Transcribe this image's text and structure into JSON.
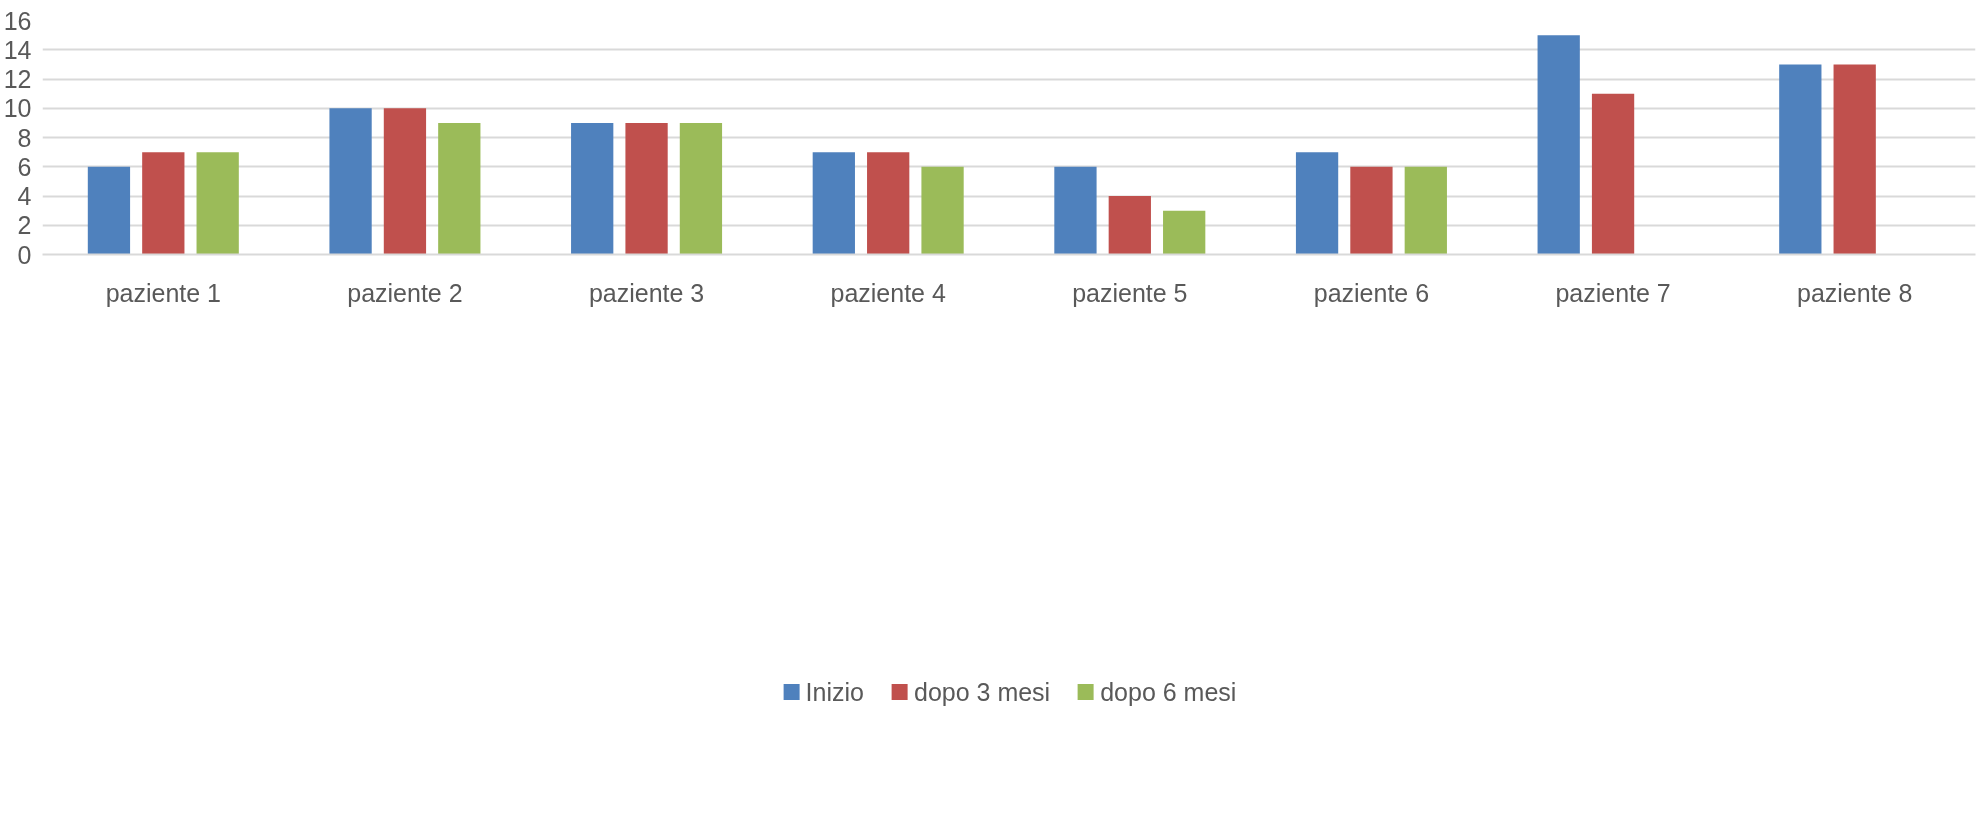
{
  "chart_data": {
    "type": "bar",
    "categories": [
      "paziente 1",
      "paziente 2",
      "paziente 3",
      "paziente 4",
      "paziente 5",
      "paziente 6",
      "paziente 7",
      "paziente 8"
    ],
    "series": [
      {
        "name": "Inizio",
        "color": "#4f81bd",
        "values": [
          6,
          10,
          9,
          7,
          6,
          7,
          15,
          13
        ]
      },
      {
        "name": "dopo 3 mesi",
        "color": "#c0504d",
        "values": [
          7,
          10,
          9,
          7,
          4,
          6,
          11,
          13
        ]
      },
      {
        "name": "dopo 6 mesi",
        "color": "#9bbb59",
        "values": [
          7,
          9,
          9,
          6,
          3,
          6,
          null,
          null
        ]
      }
    ],
    "ylim": [
      0,
      16
    ],
    "yticks": [
      0,
      2,
      4,
      6,
      8,
      10,
      12,
      14,
      16
    ],
    "grid": "y",
    "legend": "bottom"
  }
}
